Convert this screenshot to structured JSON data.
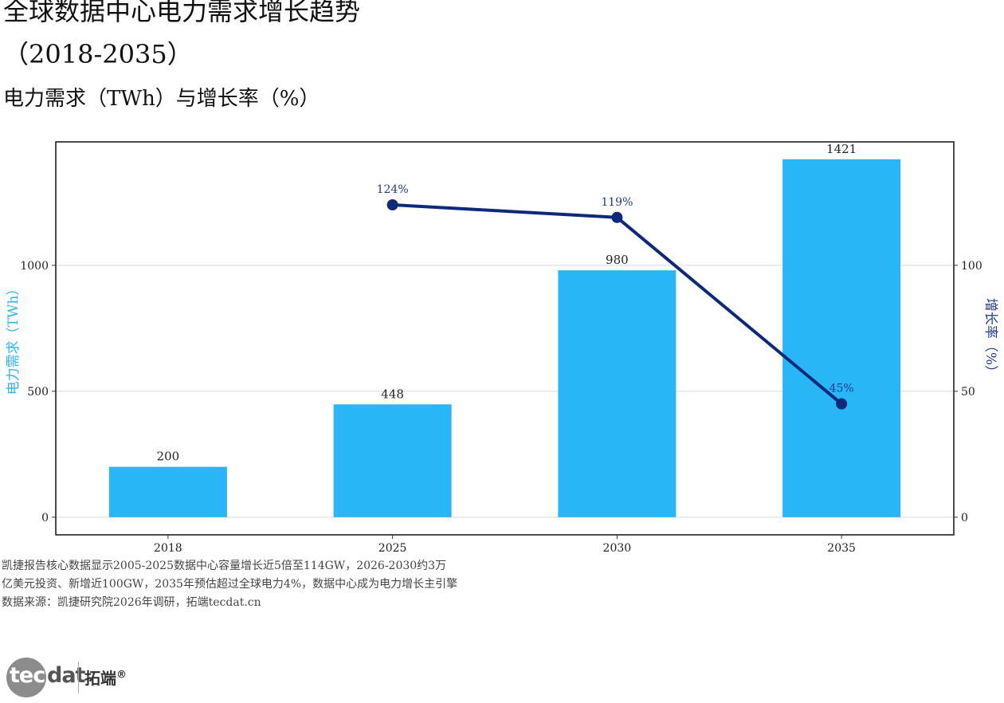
{
  "title_line1": "全球数据中心电力需求增长趋势",
  "title_line2": "（2018-2035）",
  "subtitle": "电力需求（TWh）与增长率（%）",
  "chart_data": {
    "type": "bar",
    "categories": [
      "2018",
      "2025",
      "2030",
      "2035"
    ],
    "series": [
      {
        "type": "bar",
        "axis": "left",
        "values": [
          200,
          448,
          980,
          1421
        ],
        "color": "#29B6F6"
      },
      {
        "type": "line",
        "axis": "right",
        "values": [
          null,
          124,
          119,
          45
        ],
        "value_labels": [
          "",
          "124%",
          "119%",
          "45%"
        ],
        "color": "#0D2A7A"
      }
    ],
    "ylabel": "电力需求（TWh）",
    "ylabel_color": "#29B6F6",
    "y2label": "增长率（%）",
    "y2label_color": "#1F3A93",
    "ylim": [
      -70,
      1490
    ],
    "y2lim": [
      -7,
      149
    ],
    "yticks": [
      0,
      500,
      1000
    ],
    "y2ticks": [
      0,
      50,
      100
    ],
    "grid": true
  },
  "caption": {
    "line1": "凯捷报告核心数据显示2005-2025数据中心容量增长近5倍至114GW，2026-2030约3万",
    "line2": "亿美元投资、新增近100GW，2035年预估超过全球电力4%，数据中心成为电力增长主引擎",
    "line3": "数据来源：凯捷研究院2026年调研，拓端tecdat.cn"
  },
  "logo": {
    "tec": "tec",
    "dat": "dat",
    "cn": "拓端",
    "reg": "®"
  }
}
